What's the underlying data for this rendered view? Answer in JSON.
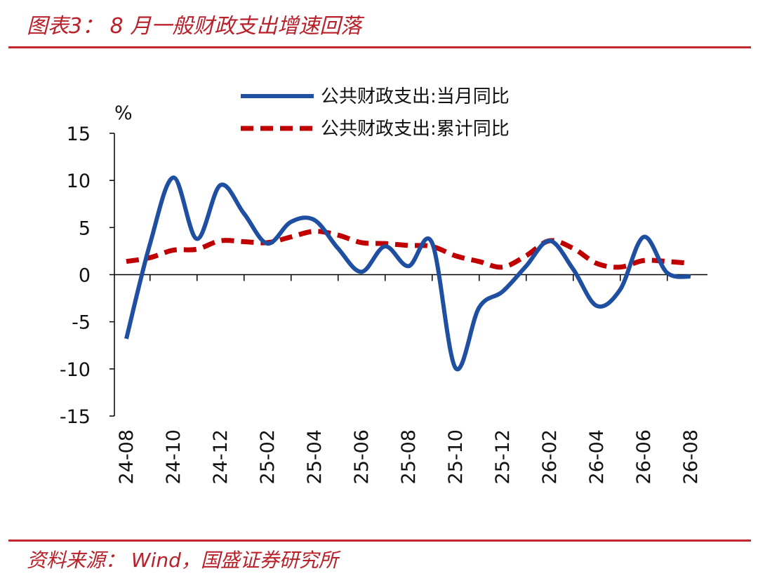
{
  "header": {
    "title": "图表3：  8 月一般财政支出增速回落"
  },
  "footer": {
    "source": "资料来源：  Wind，国盛证券研究所"
  },
  "colors": {
    "accent": "#c0282d",
    "series_current": "#1f4fa0",
    "series_cumulative": "#c00000"
  },
  "chart_data": {
    "type": "line",
    "ylabel": "%",
    "ylim": [
      -15,
      15
    ],
    "yticks": [
      "15",
      "10",
      "5",
      "0",
      "-5",
      "-10",
      "-15"
    ],
    "x_tick_labels": [
      "24-08",
      "24-10",
      "24-12",
      "25-02",
      "25-04",
      "25-06",
      "25-08",
      "25-10",
      "25-12",
      "26-02",
      "26-04",
      "26-06",
      "26-08"
    ],
    "categories": [
      "24-08",
      "24-09",
      "24-10",
      "24-11",
      "24-12",
      "25-01",
      "25-02",
      "25-03",
      "25-04",
      "25-05",
      "25-06",
      "25-07",
      "25-08",
      "25-09",
      "25-10",
      "25-11",
      "25-12",
      "26-01",
      "26-02",
      "26-03",
      "26-04",
      "26-05",
      "26-06",
      "26-07",
      "26-08"
    ],
    "legend_position": "top",
    "series": [
      {
        "name": "公共财政支出:当月同比",
        "style": "solid",
        "values": [
          -6.8,
          3.2,
          10.3,
          3.8,
          9.5,
          6.5,
          3.3,
          5.6,
          5.8,
          2.8,
          0.3,
          3.0,
          0.9,
          3.4,
          -9.9,
          -3.5,
          -1.8,
          0.9,
          3.6,
          0.6,
          -3.3,
          -1.6,
          4.0,
          0.2,
          -0.2
        ]
      },
      {
        "name": "公共财政支出:累计同比",
        "style": "dashed",
        "values": [
          1.4,
          1.8,
          2.6,
          2.7,
          3.6,
          3.5,
          3.4,
          4.0,
          4.6,
          4.2,
          3.4,
          3.3,
          3.1,
          3.0,
          2.0,
          1.4,
          0.8,
          2.0,
          3.6,
          2.8,
          1.2,
          0.8,
          1.5,
          1.4,
          1.2
        ]
      }
    ]
  }
}
